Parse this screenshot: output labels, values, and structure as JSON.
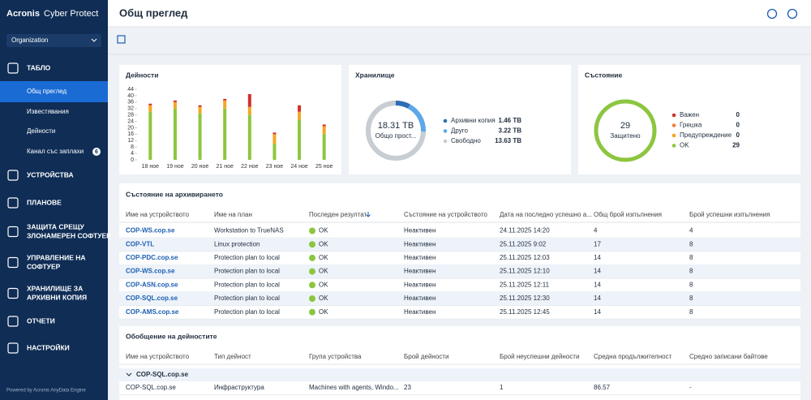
{
  "sidebar": {
    "brand_strong": "Acronis",
    "brand": "Cyber Protect",
    "org": "Organization",
    "nav": [
      {
        "lines": [
          "ТАБЛО"
        ]
      },
      {
        "lines": [
          "УСТРОЙСТВА"
        ]
      },
      {
        "lines": [
          "ПЛАНОВЕ"
        ]
      },
      {
        "lines": [
          "ЗАЩИТА СРЕЩУ",
          "ЗЛОНАМЕРЕН СОФТУЕР"
        ]
      },
      {
        "lines": [
          "УПРАВЛЕНИЕ НА",
          "СОФТУЕР"
        ]
      },
      {
        "lines": [
          "ХРАНИЛИЩЕ ЗА",
          "АРХИВНИ КОПИЯ"
        ]
      },
      {
        "lines": [
          "ОТЧЕТИ"
        ]
      },
      {
        "lines": [
          "НАСТРОЙКИ"
        ]
      }
    ],
    "subnav": [
      "Общ преглед",
      "Известявания",
      "Дейности",
      "Канал със заплахи"
    ],
    "badge": 6,
    "footer": "Powered by Acronis AnyData Engine"
  },
  "header": {
    "title": "Общ преглед"
  },
  "activities": {
    "type": "bar",
    "stacked": true,
    "title": "Дейности",
    "categories": [
      "18 ное",
      "19 ное",
      "20 ное",
      "21 ное",
      "22 ное",
      "23 ное",
      "24 ное",
      "25 ное"
    ],
    "series": [
      {
        "color": "#8cc63f",
        "values": [
          30,
          32,
          29,
          32,
          28,
          10,
          25,
          16
        ]
      },
      {
        "color": "#f5a623",
        "values": [
          4,
          4,
          4,
          5,
          5,
          6,
          5,
          5
        ]
      },
      {
        "color": "#d0312d",
        "values": [
          1,
          1,
          1,
          1,
          8,
          1,
          4,
          1
        ]
      }
    ],
    "ylim": [
      0,
      44
    ],
    "yticks": [
      0,
      4,
      8,
      12,
      16,
      20,
      24,
      28,
      32,
      36,
      40,
      44
    ]
  },
  "storage": {
    "type": "donut",
    "title": "Хранилище",
    "center_value": "18.31 TB",
    "center_label": "Общо прост...",
    "labels": [
      "Архивни копия",
      "Друго",
      "Свободно"
    ],
    "values": [
      1.46,
      3.22,
      13.63
    ],
    "value_labels": [
      "1.46 TB",
      "3.22 TB",
      "13.63 TB"
    ],
    "colors": [
      "#2f6db5",
      "#5ca8e8",
      "#c8cdd3"
    ]
  },
  "status": {
    "type": "donut",
    "title": "Състояние",
    "center_value": 29,
    "center_label": "Защитено",
    "labels": [
      "Важен",
      "Грешка",
      "Предупреждение",
      "OK"
    ],
    "values": [
      0,
      0,
      0,
      29
    ],
    "colors": [
      "#d0312d",
      "#f07f3c",
      "#f5a623",
      "#8cc63f"
    ]
  },
  "archive_table": {
    "title": "Състояние на архивирането",
    "headers": [
      "Име на устройството",
      "Име на план",
      "Последен резултат",
      "Състояние на устройството",
      "Дата на последно успешно а...",
      "Общ брой изпълнения",
      "Брой успешни изпълнения"
    ],
    "rows": [
      [
        "COP-WS.cop.se",
        "Workstation to TrueNAS",
        "OK",
        "Неактивен",
        "24.11.2025 14:20",
        "4",
        "4"
      ],
      [
        "COP-VTL",
        "Linux protection",
        "OK",
        "Неактивен",
        "25.11.2025 9:02",
        "17",
        "8"
      ],
      [
        "COP-PDC.cop.se",
        "Protection plan to local",
        "OK",
        "Неактивен",
        "25.11.2025 12:03",
        "14",
        "8"
      ],
      [
        "COP-WS.cop.se",
        "Protection plan to local",
        "OK",
        "Неактивен",
        "25.11.2025 12:10",
        "14",
        "8"
      ],
      [
        "COP-ASN.cop.se",
        "Protection plan to local",
        "OK",
        "Неактивен",
        "25.11.2025 12:11",
        "14",
        "8"
      ],
      [
        "COP-SQL.cop.se",
        "Protection plan to local",
        "OK",
        "Неактивен",
        "25.11.2025 12:30",
        "14",
        "8"
      ],
      [
        "COP-AMS.cop.se",
        "Protection plan to local",
        "OK",
        "Неактивен",
        "25.11.2025 12:45",
        "14",
        "8"
      ]
    ]
  },
  "summary_table": {
    "title": "Обобщение на дейностите",
    "headers": [
      "Име на устройството",
      "Тип дейност",
      "Група устройства",
      "Брой дейности",
      "Брой неуспешни дейности",
      "Средна продължителност",
      "Средно записани байтове"
    ],
    "group": "COP-SQL.cop.se",
    "rows": [
      [
        "COP-SQL.cop.se",
        "Инфраструктура",
        "Machines with agents, Windo...",
        "23",
        "1",
        "86.57",
        "-"
      ]
    ]
  }
}
